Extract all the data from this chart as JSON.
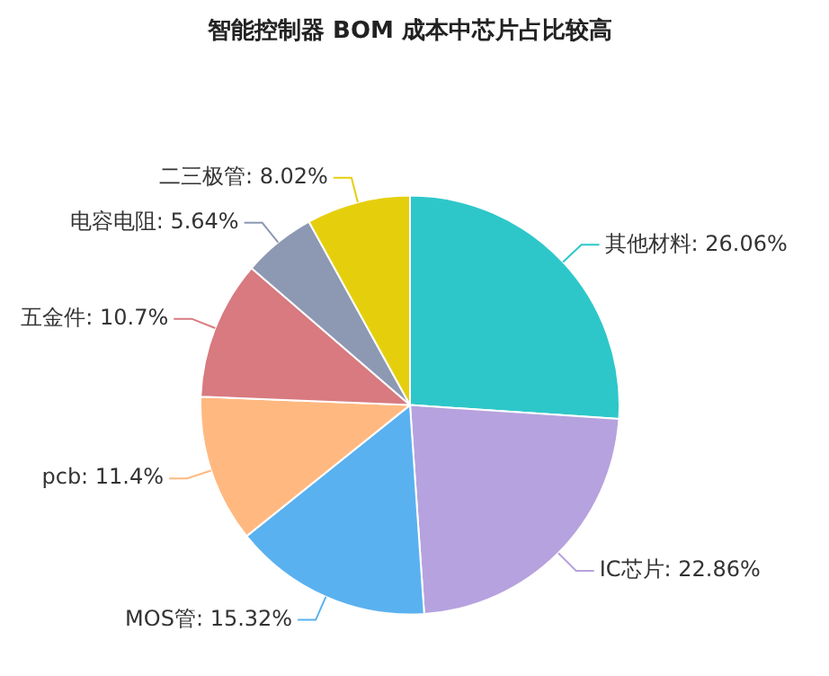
{
  "chart_data": {
    "type": "pie",
    "title": "智能控制器 BOM 成本中芯片占比较高",
    "categories": [
      "其他材料",
      "IC芯片",
      "MOS管",
      "pcb",
      "五金件",
      "电容电阻",
      "二三极管"
    ],
    "values": [
      26.06,
      22.86,
      15.32,
      11.4,
      10.7,
      5.64,
      8.02
    ],
    "value_labels": [
      "26.06%",
      "22.86%",
      "15.32%",
      "11.4%",
      "10.7%",
      "5.64%",
      "8.02%"
    ],
    "colors": [
      "#2ec7c9",
      "#b6a2de",
      "#5ab1ef",
      "#ffb980",
      "#d87a80",
      "#8d98b3",
      "#e5cf0d"
    ],
    "legend": false
  }
}
